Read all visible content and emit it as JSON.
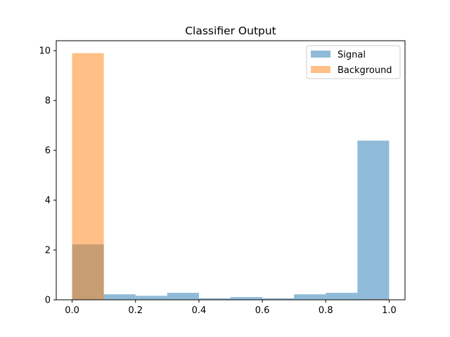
{
  "chart_data": {
    "type": "bar",
    "title": "Classifier Output",
    "xlabel": "",
    "ylabel": "",
    "xlim": [
      -0.05,
      1.05
    ],
    "ylim": [
      0,
      10.4
    ],
    "xticks": [
      "0.0",
      "0.2",
      "0.4",
      "0.6",
      "0.8",
      "1.0"
    ],
    "yticks": [
      "0",
      "2",
      "4",
      "6",
      "8",
      "10"
    ],
    "bin_edges": [
      0.0,
      0.1,
      0.2,
      0.3,
      0.4,
      0.5,
      0.6,
      0.7,
      0.8,
      0.9,
      1.0
    ],
    "legend_position": "top-right",
    "grid": false,
    "series": [
      {
        "name": "Signal",
        "color": "#1f77b4",
        "opacity": 0.5,
        "values": [
          2.22,
          0.22,
          0.16,
          0.28,
          0.06,
          0.11,
          0.06,
          0.22,
          0.28,
          6.39
        ]
      },
      {
        "name": "Background",
        "color": "#ff7f0e",
        "opacity": 0.5,
        "values": [
          9.9,
          0.0,
          0.0,
          0.0,
          0.0,
          0.0,
          0.0,
          0.0,
          0.0,
          0.02
        ]
      }
    ]
  }
}
